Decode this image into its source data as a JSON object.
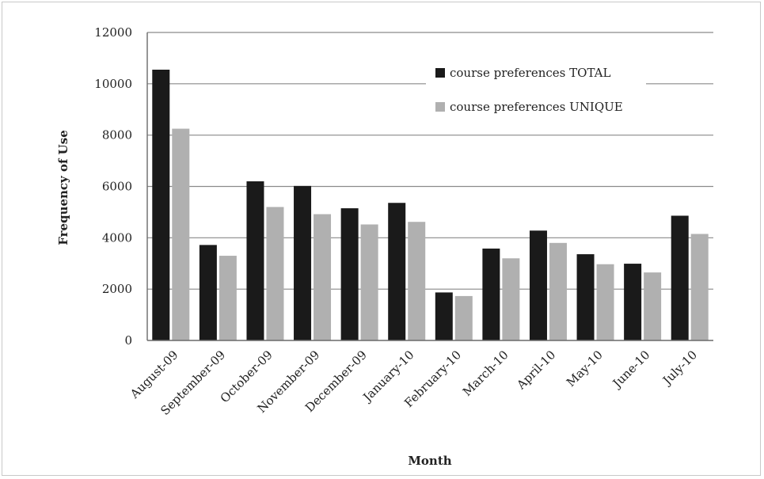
{
  "chart_data": {
    "type": "bar",
    "title": "",
    "xlabel": "Month",
    "ylabel": "Frequency of Use",
    "categories": [
      "August-09",
      "September-09",
      "October-09",
      "November-09",
      "December-09",
      "January-10",
      "February-10",
      "March-10",
      "April-10",
      "May-10",
      "June-10",
      "July-10"
    ],
    "series": [
      {
        "name": "course preferences TOTAL",
        "color": "#1a1a1a",
        "values": [
          10550,
          3720,
          6200,
          6020,
          5150,
          5360,
          1870,
          3580,
          4280,
          3360,
          2990,
          4860
        ]
      },
      {
        "name": "course preferences UNIQUE",
        "color": "#b0b0b0",
        "values": [
          8250,
          3300,
          5200,
          4920,
          4520,
          4620,
          1730,
          3200,
          3800,
          2970,
          2650,
          4150
        ]
      }
    ],
    "ylim": [
      0,
      12000
    ],
    "yticks": [
      0,
      2000,
      4000,
      6000,
      8000,
      10000,
      12000
    ],
    "grid": true,
    "legend_position": "top-right"
  }
}
